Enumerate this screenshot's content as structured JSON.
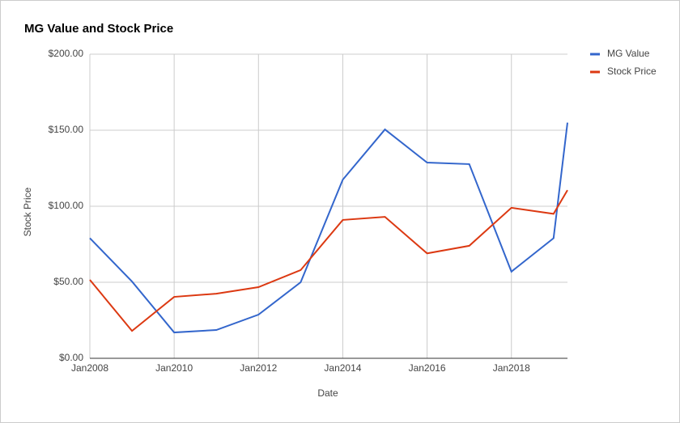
{
  "chart_data": {
    "type": "line",
    "title": "MG Value and Stock Price",
    "x_label": "Date",
    "y_label": "Stock Price",
    "x": [
      2008,
      2009,
      2010,
      2011,
      2012,
      2013,
      2014,
      2015,
      2016,
      2017,
      2018,
      2019,
      2019.33
    ],
    "series": [
      {
        "name": "MG Value",
        "color": "#3366cc",
        "values": [
          79,
          50.5,
          17,
          18.6,
          28.7,
          50,
          117.5,
          150.5,
          128.7,
          127.7,
          57,
          79,
          155
        ]
      },
      {
        "name": "Stock Price",
        "color": "#dc3912",
        "values": [
          51.6,
          18,
          40.4,
          42.5,
          46.8,
          58,
          91,
          93,
          69,
          74,
          99,
          95,
          110.6
        ]
      }
    ],
    "xlim": [
      2008,
      2019.33
    ],
    "xticks": [
      {
        "value": 2008,
        "label": "Jan2008"
      },
      {
        "value": 2010,
        "label": "Jan2010"
      },
      {
        "value": 2012,
        "label": "Jan2012"
      },
      {
        "value": 2014,
        "label": "Jan2014"
      },
      {
        "value": 2016,
        "label": "Jan2016"
      },
      {
        "value": 2018,
        "label": "Jan2018"
      }
    ],
    "ylim": [
      0,
      200
    ],
    "yticks": [
      {
        "value": 0,
        "label": "$0.00"
      },
      {
        "value": 50,
        "label": "$50.00"
      },
      {
        "value": 100,
        "label": "$100.00"
      },
      {
        "value": 150,
        "label": "$150.00"
      },
      {
        "value": 200,
        "label": "$200.00"
      }
    ],
    "grid": true,
    "legend": "right"
  }
}
